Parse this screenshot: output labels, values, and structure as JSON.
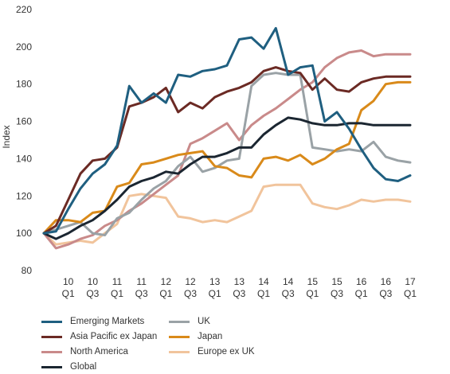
{
  "chart_data": {
    "type": "line",
    "ylabel": "Index",
    "xlabel": "",
    "title": "",
    "ylim": [
      80,
      220
    ],
    "yticks": [
      80,
      100,
      120,
      140,
      160,
      180,
      200,
      220
    ],
    "xticks": [
      {
        "x": 2,
        "line1": "10",
        "line2": "Q1"
      },
      {
        "x": 4,
        "line1": "10",
        "line2": "Q3"
      },
      {
        "x": 6,
        "line1": "11",
        "line2": "Q1"
      },
      {
        "x": 8,
        "line1": "11",
        "line2": "Q3"
      },
      {
        "x": 10,
        "line1": "12",
        "line2": "Q1"
      },
      {
        "x": 12,
        "line1": "12",
        "line2": "Q3"
      },
      {
        "x": 14,
        "line1": "13",
        "line2": "Q1"
      },
      {
        "x": 16,
        "line1": "13",
        "line2": "Q3"
      },
      {
        "x": 18,
        "line1": "14",
        "line2": "Q1"
      },
      {
        "x": 20,
        "line1": "14",
        "line2": "Q3"
      },
      {
        "x": 22,
        "line1": "15",
        "line2": "Q1"
      },
      {
        "x": 24,
        "line1": "15",
        "line2": "Q3"
      },
      {
        "x": 26,
        "line1": "16",
        "line2": "Q1"
      },
      {
        "x": 28,
        "line1": "16",
        "line2": "Q3"
      },
      {
        "x": 30,
        "line1": "17",
        "line2": "Q1"
      }
    ],
    "xlim": [
      0,
      30
    ],
    "grid": false,
    "legend_position": "bottom-left",
    "series": [
      {
        "name": "Emerging Markets",
        "color": "#1f5f80",
        "values": [
          100,
          101,
          113,
          124,
          132,
          137,
          147,
          179,
          170,
          175,
          170,
          185,
          184,
          187,
          188,
          190,
          204,
          205,
          199,
          210,
          185,
          189,
          190,
          160,
          165,
          156,
          145,
          135,
          129,
          128,
          131
        ]
      },
      {
        "name": "UK",
        "color": "#9aa2a6",
        "values": [
          100,
          102,
          104,
          106,
          100,
          99,
          108,
          111,
          118,
          124,
          128,
          136,
          141,
          133,
          135,
          139,
          140,
          179,
          185,
          186,
          185,
          185,
          146,
          145,
          144,
          145,
          144,
          149,
          141,
          139,
          138
        ]
      },
      {
        "name": "Asia Pacific ex Japan",
        "color": "#6b2a24",
        "values": [
          100,
          104,
          118,
          132,
          139,
          140,
          146,
          168,
          170,
          173,
          178,
          165,
          170,
          167,
          173,
          176,
          178,
          181,
          187,
          189,
          187,
          186,
          177,
          183,
          177,
          176,
          181,
          183,
          184,
          184,
          184
        ]
      },
      {
        "name": "Japan",
        "color": "#d98a1a",
        "values": [
          100,
          107,
          107,
          106,
          111,
          112,
          125,
          127,
          137,
          138,
          140,
          142,
          143,
          144,
          136,
          135,
          131,
          130,
          140,
          141,
          139,
          142,
          137,
          140,
          145,
          148,
          166,
          171,
          180,
          181,
          181
        ]
      },
      {
        "name": "North America",
        "color": "#c98a8a",
        "values": [
          100,
          92,
          94,
          97,
          99,
          104,
          107,
          112,
          116,
          121,
          126,
          131,
          148,
          151,
          155,
          159,
          150,
          158,
          163,
          167,
          172,
          177,
          181,
          189,
          194,
          197,
          198,
          195,
          196,
          196,
          196
        ]
      },
      {
        "name": "Europe ex UK",
        "color": "#f1c49c",
        "values": [
          100,
          94,
          95,
          96,
          95,
          100,
          105,
          120,
          121,
          120,
          119,
          109,
          108,
          106,
          107,
          106,
          109,
          112,
          125,
          126,
          126,
          126,
          116,
          114,
          113,
          115,
          118,
          117,
          118,
          118,
          117
        ]
      },
      {
        "name": "Global",
        "color": "#1b2631",
        "values": [
          100,
          97,
          100,
          104,
          107,
          112,
          118,
          125,
          128,
          130,
          133,
          132,
          137,
          141,
          141,
          143,
          146,
          146,
          153,
          158,
          162,
          161,
          159,
          158,
          158,
          159,
          159,
          158,
          158,
          158,
          158
        ]
      }
    ],
    "legend_order": [
      "Emerging Markets",
      "UK",
      "Asia Pacific ex Japan",
      "Japan",
      "North America",
      "Europe ex UK",
      "Global"
    ]
  }
}
